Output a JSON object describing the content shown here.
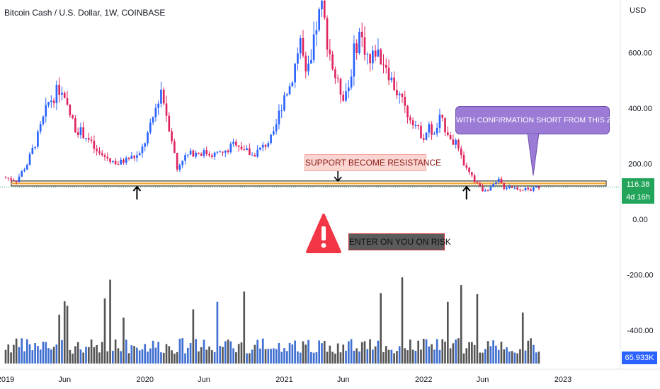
{
  "header": {
    "title": "Bitcoin Cash / U.S. Dollar, 1W, COINBASE",
    "currency": "USD"
  },
  "colors": {
    "up": "#2962ff",
    "down": "#e0245e",
    "volume_up": "#3f6fd1",
    "volume_down": "#555555",
    "support_band": "#f3a52b",
    "price_badge": "#22a55a",
    "volume_badge": "#2962ff",
    "warning": "#f23645"
  },
  "icons": {
    "warning": "warning-triangle-icon",
    "arrows": "arrow-up-icon, arrow-down-icon"
  },
  "annotations": {
    "support": "SUPPORT BECOME RESISTANCE",
    "risk": "ENTER ON YOU ON RISK",
    "callout": "WITH CONFIRMATION SHORT FROM THIS ZONE"
  },
  "current_price": "116.38",
  "countdown": "4d 16h",
  "volume_value": "65.933K",
  "chart_data": {
    "type": "candlestick",
    "title": "Bitcoin Cash / U.S. Dollar, 1W, COINBASE",
    "y_unit": "USD",
    "y_ticks": [
      "600.00",
      "400.00",
      "200.00",
      "0.00",
      "-200.00",
      "-400.00"
    ],
    "y_values": [
      600,
      400,
      200,
      0,
      -200,
      -400
    ],
    "ylim": [
      -540,
      790
    ],
    "x_ticks": [
      "2019",
      "Jun",
      "2020",
      "Jun",
      "2021",
      "Jun",
      "2022",
      "Jun",
      "2023"
    ],
    "x_tick_weeks": [
      0,
      22,
      52,
      74,
      104,
      126,
      156,
      178,
      208
    ],
    "support_zone": [
      120,
      138
    ],
    "current_price": 116.38,
    "price_path_weekly_close_approx": [
      [
        0,
        150
      ],
      [
        4,
        140
      ],
      [
        8,
        200
      ],
      [
        12,
        300
      ],
      [
        16,
        420
      ],
      [
        20,
        470
      ],
      [
        22,
        420
      ],
      [
        26,
        330
      ],
      [
        30,
        300
      ],
      [
        34,
        240
      ],
      [
        38,
        220
      ],
      [
        42,
        200
      ],
      [
        46,
        220
      ],
      [
        50,
        230
      ],
      [
        54,
        330
      ],
      [
        56,
        400
      ],
      [
        58,
        470
      ],
      [
        60,
        380
      ],
      [
        62,
        290
      ],
      [
        64,
        180
      ],
      [
        66,
        220
      ],
      [
        70,
        240
      ],
      [
        74,
        240
      ],
      [
        78,
        235
      ],
      [
        82,
        240
      ],
      [
        86,
        280
      ],
      [
        88,
        260
      ],
      [
        92,
        230
      ],
      [
        96,
        260
      ],
      [
        100,
        300
      ],
      [
        102,
        380
      ],
      [
        104,
        450
      ],
      [
        106,
        480
      ],
      [
        108,
        560
      ],
      [
        110,
        650
      ],
      [
        112,
        510
      ],
      [
        114,
        560
      ],
      [
        116,
        700
      ],
      [
        118,
        760
      ],
      [
        120,
        650
      ],
      [
        122,
        550
      ],
      [
        124,
        480
      ],
      [
        126,
        450
      ],
      [
        128,
        480
      ],
      [
        130,
        600
      ],
      [
        132,
        670
      ],
      [
        134,
        620
      ],
      [
        136,
        560
      ],
      [
        138,
        610
      ],
      [
        140,
        580
      ],
      [
        142,
        560
      ],
      [
        144,
        500
      ],
      [
        146,
        460
      ],
      [
        148,
        420
      ],
      [
        150,
        380
      ],
      [
        152,
        360
      ],
      [
        154,
        320
      ],
      [
        156,
        300
      ],
      [
        158,
        330
      ],
      [
        160,
        300
      ],
      [
        162,
        360
      ],
      [
        164,
        330
      ],
      [
        166,
        300
      ],
      [
        168,
        270
      ],
      [
        170,
        220
      ],
      [
        172,
        180
      ],
      [
        174,
        150
      ],
      [
        176,
        130
      ],
      [
        178,
        105
      ],
      [
        180,
        110
      ],
      [
        182,
        120
      ],
      [
        184,
        140
      ],
      [
        186,
        115
      ],
      [
        188,
        120
      ],
      [
        190,
        112
      ],
      [
        192,
        110
      ],
      [
        194,
        108
      ],
      [
        196,
        106
      ],
      [
        198,
        115
      ],
      [
        199,
        116
      ]
    ],
    "arrows": [
      {
        "week": 49,
        "dir": "up"
      },
      {
        "week": 124,
        "dir": "down"
      },
      {
        "week": 172,
        "dir": "up"
      }
    ],
    "volume_scale": "relative",
    "volume_last": "65.933K"
  }
}
